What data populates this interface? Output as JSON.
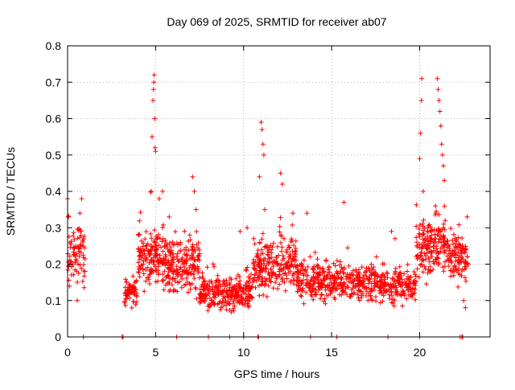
{
  "chart_data": {
    "type": "scatter",
    "title": "Day 069 of 2025, SRMTID for receiver ab07",
    "xlabel": "GPS time / hours",
    "ylabel": "SRMTID / TECUs",
    "xlim": [
      0,
      24
    ],
    "ylim": [
      0,
      0.8
    ],
    "x_ticks": [
      0,
      5,
      10,
      15,
      20
    ],
    "x_tick_labels": [
      "0",
      "5",
      "10",
      "15",
      "20"
    ],
    "y_ticks": [
      0,
      0.1,
      0.2,
      0.3,
      0.4,
      0.5,
      0.6,
      0.7,
      0.8
    ],
    "y_tick_labels": [
      "0",
      "0.1",
      "0.2",
      "0.3",
      "0.4",
      "0.5",
      "0.6",
      "0.7",
      "0.8"
    ],
    "grid": true,
    "marker": "plus",
    "colors": {
      "points": "#ff0000",
      "axis": "#000000",
      "grid": "#a0a0a0",
      "background": "#ffffff"
    },
    "series": [
      {
        "name": "SRMTID",
        "segments": [
          {
            "x_start": 0.0,
            "x_end": 1.0,
            "y_mean": 0.22,
            "spread": 0.07,
            "count": 80
          },
          {
            "x_start": 3.2,
            "x_end": 4.0,
            "y_mean": 0.12,
            "spread": 0.03,
            "count": 60
          },
          {
            "x_start": 4.0,
            "x_end": 5.3,
            "y_mean": 0.22,
            "spread": 0.07,
            "count": 140
          },
          {
            "x_start": 5.3,
            "x_end": 7.5,
            "y_mean": 0.2,
            "spread": 0.07,
            "count": 220
          },
          {
            "x_start": 7.5,
            "x_end": 10.5,
            "y_mean": 0.12,
            "spread": 0.04,
            "count": 280
          },
          {
            "x_start": 10.5,
            "x_end": 13.0,
            "y_mean": 0.2,
            "spread": 0.07,
            "count": 230
          },
          {
            "x_start": 13.0,
            "x_end": 17.5,
            "y_mean": 0.15,
            "spread": 0.05,
            "count": 380
          },
          {
            "x_start": 17.5,
            "x_end": 19.8,
            "y_mean": 0.14,
            "spread": 0.04,
            "count": 180
          },
          {
            "x_start": 19.8,
            "x_end": 21.5,
            "y_mean": 0.25,
            "spread": 0.07,
            "count": 170
          },
          {
            "x_start": 21.5,
            "x_end": 22.8,
            "y_mean": 0.22,
            "spread": 0.06,
            "count": 110
          }
        ],
        "outliers": [
          [
            0.0,
            0.38
          ],
          [
            0.05,
            0.33
          ],
          [
            0.55,
            0.1
          ],
          [
            0.7,
            0.34
          ],
          [
            0.8,
            0.38
          ],
          [
            4.75,
            0.4
          ],
          [
            4.8,
            0.55
          ],
          [
            4.85,
            0.65
          ],
          [
            4.88,
            0.68
          ],
          [
            4.9,
            0.7
          ],
          [
            4.92,
            0.72
          ],
          [
            4.95,
            0.6
          ],
          [
            4.97,
            0.52
          ],
          [
            5.0,
            0.51
          ],
          [
            5.2,
            0.38
          ],
          [
            5.4,
            0.4
          ],
          [
            7.1,
            0.44
          ],
          [
            7.2,
            0.4
          ],
          [
            7.3,
            0.35
          ],
          [
            9.8,
            0.29
          ],
          [
            10.2,
            0.3
          ],
          [
            10.9,
            0.44
          ],
          [
            11.0,
            0.59
          ],
          [
            11.05,
            0.57
          ],
          [
            11.1,
            0.53
          ],
          [
            11.15,
            0.5
          ],
          [
            11.2,
            0.35
          ],
          [
            12.1,
            0.45
          ],
          [
            12.2,
            0.42
          ],
          [
            12.8,
            0.34
          ],
          [
            13.6,
            0.34
          ],
          [
            15.7,
            0.37
          ],
          [
            18.4,
            0.29
          ],
          [
            18.6,
            0.27
          ],
          [
            20.0,
            0.49
          ],
          [
            20.05,
            0.56
          ],
          [
            20.1,
            0.65
          ],
          [
            20.12,
            0.71
          ],
          [
            20.2,
            0.4
          ],
          [
            20.9,
            0.36
          ],
          [
            21.0,
            0.71
          ],
          [
            21.05,
            0.68
          ],
          [
            21.1,
            0.65
          ],
          [
            21.15,
            0.62
          ],
          [
            21.2,
            0.58
          ],
          [
            21.25,
            0.53
          ],
          [
            21.3,
            0.5
          ],
          [
            21.35,
            0.47
          ],
          [
            21.4,
            0.43
          ],
          [
            22.5,
            0.1
          ],
          [
            22.6,
            0.08
          ],
          [
            22.7,
            0.33
          ]
        ]
      }
    ],
    "zero_points": [
      0.9,
      3.1,
      3.15,
      6.2,
      8.0,
      9.2,
      10.0,
      10.8,
      10.85,
      13.8,
      15.3,
      18.2,
      20.0,
      22.3,
      22.4,
      22.45
    ]
  }
}
